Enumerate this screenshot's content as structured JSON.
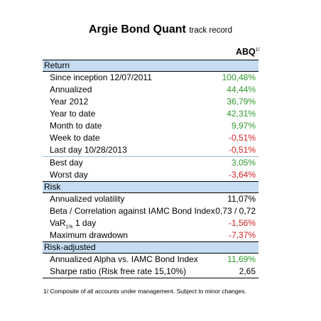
{
  "title": {
    "main": "Argie Bond Quant",
    "sub": "track record"
  },
  "column_header": {
    "label": "ABQ",
    "footnote_mark": "1/"
  },
  "sections": [
    {
      "header": "Return",
      "rows": [
        {
          "label": "Since inception 12/07/2011",
          "value": "100,48%",
          "color": "#2e9a2e"
        },
        {
          "label": "Annualized",
          "value": "44,44%",
          "color": "#2e9a2e"
        },
        {
          "label": "Year 2012",
          "value": "36,79%",
          "color": "#2e9a2e"
        },
        {
          "label": "Year to date",
          "value": "42,31%",
          "color": "#2e9a2e"
        },
        {
          "label": "Month to date",
          "value": "9,97%",
          "color": "#2e9a2e"
        },
        {
          "label": "Week to date",
          "value": "-0,51%",
          "color": "#d42020"
        },
        {
          "label": "Last day 10/28/2013",
          "value": "-0,51%",
          "color": "#d42020"
        }
      ],
      "extra_rows": [
        {
          "label": "Best day",
          "value": "3,05%",
          "color": "#2e9a2e"
        },
        {
          "label": "Worst day",
          "value": "-3,64%",
          "color": "#d42020"
        }
      ]
    },
    {
      "header": "Risk",
      "rows": [
        {
          "label": "Annualized volatility",
          "value": "11,07%",
          "color": "#000000"
        },
        {
          "label": "Beta / Correlation against IAMC Bond Index",
          "value": "0,73 / 0,72",
          "color": "#000000"
        },
        {
          "label_pre": "VaR",
          "label_sub": "1%",
          "label_post": " 1 day",
          "value": "-1,56%",
          "color": "#d42020"
        },
        {
          "label": "Maximum drawdown",
          "value": "-7,37%",
          "color": "#d42020"
        }
      ]
    },
    {
      "header": "Risk-adjusted",
      "rows": [
        {
          "label": "Annualized Alpha vs. IAMC Bond Index",
          "value": "11,69%",
          "color": "#2e9a2e"
        },
        {
          "label": "Sharpe ratio (Risk free rate 15,10%)",
          "value": "2,65",
          "color": "#000000"
        }
      ]
    }
  ],
  "footnote": "1/ Composite of all accounts under management. Subject to minor changes."
}
